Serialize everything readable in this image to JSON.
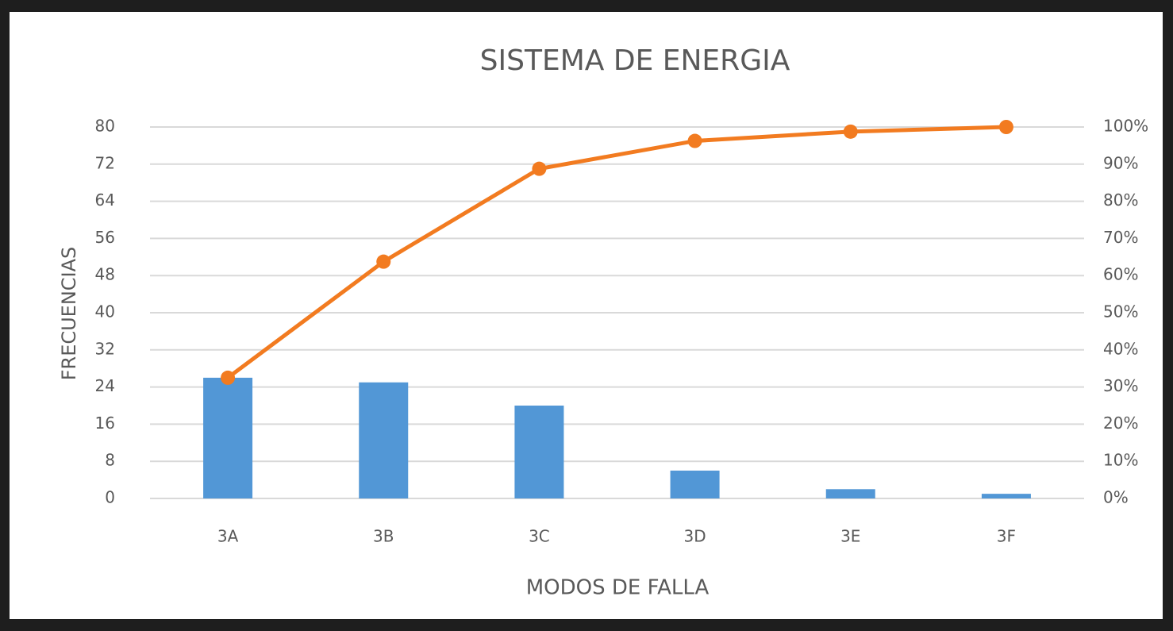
{
  "chart_data": {
    "type": "bar",
    "title": "SISTEMA DE ENERGIA",
    "x_label": "MODOS DE FALLA",
    "y_label": "FRECUENCIAS",
    "categories": [
      "3A",
      "3B",
      "3C",
      "3D",
      "3E",
      "3F"
    ],
    "series": [
      {
        "type": "bar",
        "color": "#5297d6",
        "values": [
          26,
          25,
          20,
          6,
          2,
          1
        ]
      },
      {
        "type": "line",
        "axis": "y2",
        "color": "#f27b20",
        "values": [
          32.5,
          63.75,
          88.75,
          96.25,
          98.75,
          100
        ]
      }
    ],
    "ylim": [
      0,
      80
    ],
    "yticks": [
      0,
      8,
      16,
      24,
      32,
      40,
      48,
      56,
      64,
      72,
      80
    ],
    "y2lim": [
      0,
      100
    ],
    "y2ticks": [
      {
        "value": 0,
        "label": "0%"
      },
      {
        "value": 10,
        "label": "10%"
      },
      {
        "value": 20,
        "label": "20%"
      },
      {
        "value": 30,
        "label": "30%"
      },
      {
        "value": 40,
        "label": "40%"
      },
      {
        "value": 50,
        "label": "50%"
      },
      {
        "value": 60,
        "label": "60%"
      },
      {
        "value": 70,
        "label": "70%"
      },
      {
        "value": 80,
        "label": "80%"
      },
      {
        "value": 90,
        "label": "90%"
      },
      {
        "value": 100,
        "label": "100%"
      }
    ],
    "grid": true
  }
}
